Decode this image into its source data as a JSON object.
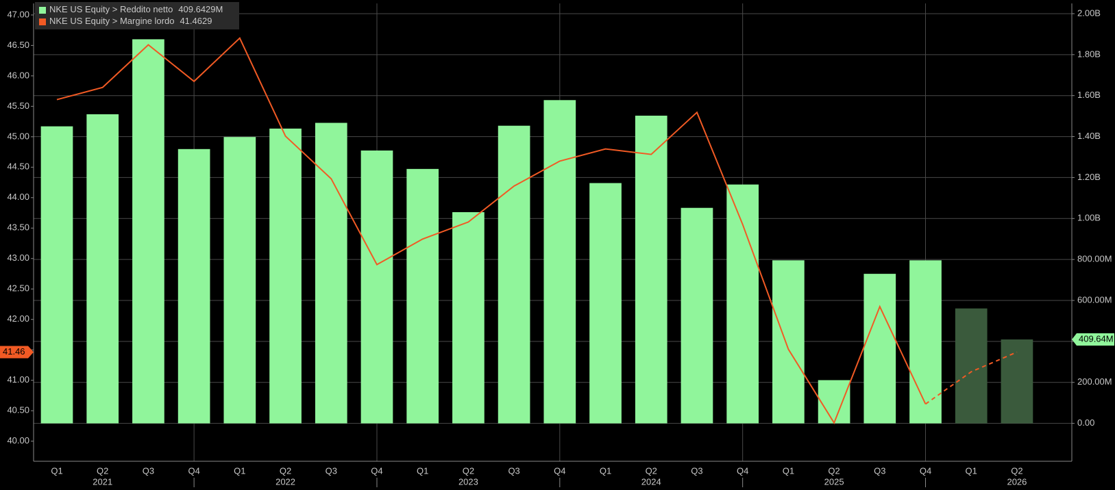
{
  "chart_data": {
    "type": "bar-line",
    "categories": [
      "Q1",
      "Q2",
      "Q3",
      "Q4",
      "Q1",
      "Q2",
      "Q3",
      "Q4",
      "Q1",
      "Q2",
      "Q3",
      "Q4",
      "Q1",
      "Q2",
      "Q3",
      "Q4",
      "Q1",
      "Q2",
      "Q3",
      "Q4",
      "Q1",
      "Q2"
    ],
    "years": [
      "2021",
      "2022",
      "2023",
      "2024",
      "2025",
      "2026"
    ],
    "series": [
      {
        "name": "NKE US Equity > Reddito netto",
        "legend_value": "409.6429M",
        "axis_tag": "409.64M",
        "type": "bar",
        "axis": "y2",
        "color": "#90f59b",
        "estimate_color": "#3a5a3c",
        "estimate_start": 20,
        "values": [
          1450000000,
          1509000000,
          1875000000,
          1339000000,
          1398000000,
          1439000000,
          1467000000,
          1332000000,
          1242000000,
          1031000000,
          1453000000,
          1578000000,
          1173000000,
          1502000000,
          1052000000,
          1166000000,
          796000000,
          211000000,
          730000000,
          796000000,
          561000000,
          409642900
        ]
      },
      {
        "name": "NKE US Equity > Margine lordo",
        "legend_value": "41.4629",
        "axis_tag": "41.46",
        "type": "line",
        "axis": "y",
        "color": "#f15a24",
        "estimate_start": 19,
        "values": [
          45.61,
          45.81,
          46.51,
          45.91,
          46.62,
          45.01,
          44.31,
          42.9,
          43.32,
          43.6,
          44.19,
          44.6,
          44.8,
          44.71,
          45.4,
          43.56,
          41.51,
          40.3,
          42.21,
          40.61,
          41.14,
          41.4629
        ]
      }
    ],
    "ylim": [
      39.67,
      47.19
    ],
    "yticks": [
      {
        "value": 40,
        "label": "40.00"
      },
      {
        "value": 40.5,
        "label": "40.50"
      },
      {
        "value": 41,
        "label": "41.00"
      },
      {
        "value": 41.5,
        "label": "41.50"
      },
      {
        "value": 42,
        "label": "42.00"
      },
      {
        "value": 42.5,
        "label": "42.50"
      },
      {
        "value": 43,
        "label": "43.00"
      },
      {
        "value": 43.5,
        "label": "43.50"
      },
      {
        "value": 44,
        "label": "44.00"
      },
      {
        "value": 44.5,
        "label": "44.50"
      },
      {
        "value": 45,
        "label": "45.00"
      },
      {
        "value": 45.5,
        "label": "45.50"
      },
      {
        "value": 46,
        "label": "46.00"
      },
      {
        "value": 46.5,
        "label": "46.50"
      },
      {
        "value": 47,
        "label": "47.00"
      }
    ],
    "y2lim": [
      -185000000,
      2050000000
    ],
    "y2ticks": [
      {
        "value": 0,
        "label": "0.00"
      },
      {
        "value": 200000000,
        "label": "200.00M"
      },
      {
        "value": 400000000,
        "label": "400.00M"
      },
      {
        "value": 600000000,
        "label": "600.00M"
      },
      {
        "value": 800000000,
        "label": "800.00M"
      },
      {
        "value": 1000000000,
        "label": "1.00B"
      },
      {
        "value": 1200000000,
        "label": "1.20B"
      },
      {
        "value": 1400000000,
        "label": "1.40B"
      },
      {
        "value": 1600000000,
        "label": "1.60B"
      },
      {
        "value": 1800000000,
        "label": "1.80B"
      },
      {
        "value": 2000000000,
        "label": "2.00B"
      }
    ],
    "grid": true
  }
}
